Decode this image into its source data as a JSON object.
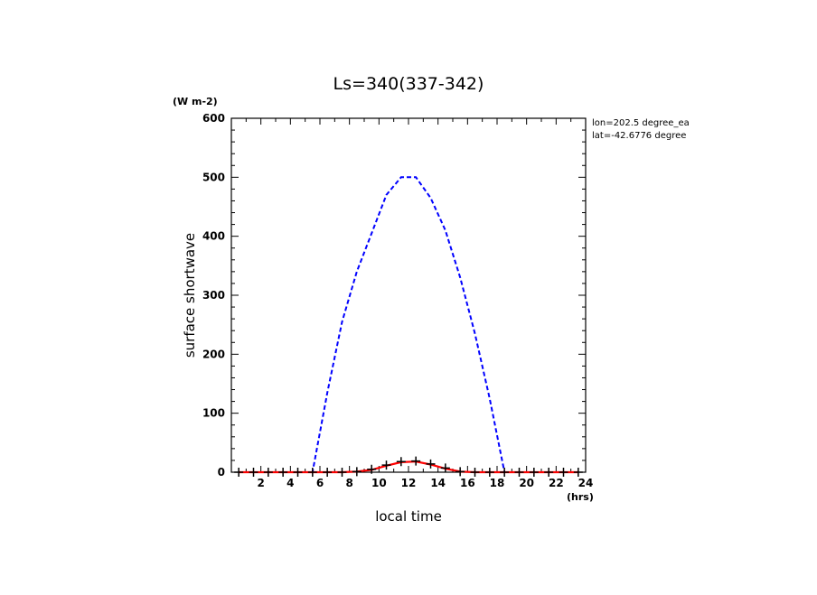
{
  "chart_data": {
    "type": "line",
    "title": "Ls=340(337-342)",
    "xlabel": "local time",
    "ylabel": "surface shortwave",
    "x_unit": "(hrs)",
    "y_unit": "(W m-2)",
    "annotations": [
      "lon=202.5 degree_ea",
      "lat=-42.6776 degree"
    ],
    "xlim": [
      0,
      24
    ],
    "ylim": [
      0,
      600
    ],
    "x_tick_labels": [
      2,
      4,
      6,
      8,
      10,
      12,
      14,
      16,
      18,
      20,
      22,
      24
    ],
    "y_tick_labels": [
      0,
      100,
      200,
      300,
      400,
      500,
      600
    ],
    "grid": false,
    "series": [
      {
        "style": "dashed",
        "color": "#0000ff",
        "x": [
          0.5,
          1.5,
          2.5,
          3.5,
          4.5,
          5.5,
          6.5,
          7.5,
          8.5,
          9.5,
          10.5,
          11.5,
          12.5,
          13.5,
          14.5,
          15.5,
          16.5,
          17.5,
          18.5,
          19.5,
          20.5,
          21.5,
          22.5,
          23.5
        ],
        "values": [
          0,
          0,
          0,
          0,
          0,
          0,
          135,
          255,
          340,
          405,
          470,
          500,
          500,
          465,
          410,
          330,
          235,
          125,
          0,
          0,
          0,
          0,
          0,
          0
        ]
      },
      {
        "style": "solid",
        "color": "#ff0000",
        "x": [
          0.5,
          1.5,
          2.5,
          3.5,
          4.5,
          5.5,
          6.5,
          7.5,
          8.5,
          9.5,
          10.5,
          11.5,
          12.5,
          13.5,
          14.5,
          15.5,
          16.5,
          17.5,
          18.5,
          19.5,
          20.5,
          21.5,
          22.5,
          23.5
        ],
        "values": [
          0,
          0,
          0,
          0,
          0,
          0,
          0,
          0,
          1,
          4,
          11,
          17,
          18,
          13,
          6,
          1,
          0,
          0,
          0,
          0,
          0,
          0,
          0,
          0
        ]
      },
      {
        "style": "markers-plus",
        "color": "#000000",
        "x": [
          0.5,
          1.5,
          2.5,
          3.5,
          4.5,
          5.5,
          6.5,
          7.5,
          8.5,
          9.5,
          10.5,
          11.5,
          12.5,
          13.5,
          14.5,
          15.5,
          16.5,
          17.5,
          18.5,
          19.5,
          20.5,
          21.5,
          22.5,
          23.5
        ],
        "values": [
          0,
          0,
          0,
          0,
          0,
          0,
          0,
          0,
          1,
          5,
          12,
          18,
          19,
          14,
          7,
          1,
          0,
          0,
          0,
          0,
          0,
          0,
          0,
          0
        ]
      }
    ]
  }
}
